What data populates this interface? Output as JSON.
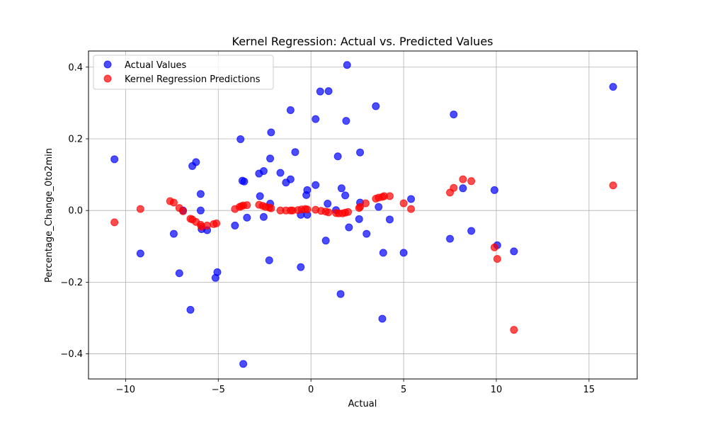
{
  "chart_data": {
    "type": "scatter",
    "title": "Kernel Regression: Actual vs. Predicted Values",
    "xlabel": "Actual",
    "ylabel": "Percentage_Change_0to2min",
    "xlim": [
      -12,
      17.6
    ],
    "ylim": [
      -0.47,
      0.445
    ],
    "x_ticks": [
      -10,
      -5,
      0,
      5,
      10,
      15
    ],
    "x_tick_labels": [
      "−10",
      "−5",
      "0",
      "5",
      "10",
      "15"
    ],
    "y_ticks": [
      -0.4,
      -0.2,
      0.0,
      0.2,
      0.4
    ],
    "y_tick_labels": [
      "−0.4",
      "−0.2",
      "0.0",
      "0.2",
      "0.4"
    ],
    "grid": true,
    "legend_position": "top-left",
    "series": [
      {
        "name": "Actual Values",
        "color": "#0000ff",
        "points": [
          [
            -10.6,
            0.143
          ],
          [
            -9.2,
            -0.12
          ],
          [
            -7.4,
            -0.065
          ],
          [
            -7.1,
            -0.175
          ],
          [
            -6.9,
            0.0
          ],
          [
            -6.5,
            -0.277
          ],
          [
            -6.4,
            0.124
          ],
          [
            -6.2,
            0.135
          ],
          [
            -5.95,
            0.046
          ],
          [
            -5.95,
            0.0
          ],
          [
            -5.9,
            -0.052
          ],
          [
            -5.6,
            -0.055
          ],
          [
            -5.15,
            -0.188
          ],
          [
            -5.05,
            -0.172
          ],
          [
            -4.1,
            -0.042
          ],
          [
            -3.8,
            0.199
          ],
          [
            -3.7,
            0.083
          ],
          [
            -3.65,
            -0.428
          ],
          [
            -3.6,
            0.081
          ],
          [
            -3.45,
            -0.02
          ],
          [
            -2.8,
            0.103
          ],
          [
            -2.75,
            0.04
          ],
          [
            -2.55,
            0.11
          ],
          [
            -2.55,
            -0.018
          ],
          [
            -2.25,
            -0.139
          ],
          [
            -2.2,
            0.019
          ],
          [
            -2.2,
            0.145
          ],
          [
            -2.15,
            0.218
          ],
          [
            -1.65,
            0.105
          ],
          [
            -1.35,
            0.078
          ],
          [
            -1.1,
            0.087
          ],
          [
            -1.1,
            0.28
          ],
          [
            -0.85,
            0.163
          ],
          [
            -0.55,
            -0.012
          ],
          [
            -0.55,
            -0.158
          ],
          [
            -0.25,
            0.043
          ],
          [
            -0.2,
            0.057
          ],
          [
            -0.2,
            -0.012
          ],
          [
            0.25,
            0.071
          ],
          [
            0.25,
            0.255
          ],
          [
            0.5,
            0.332
          ],
          [
            0.8,
            -0.084
          ],
          [
            0.9,
            0.019
          ],
          [
            0.95,
            0.333
          ],
          [
            1.35,
            0.001
          ],
          [
            1.45,
            0.151
          ],
          [
            1.6,
            -0.233
          ],
          [
            1.65,
            0.062
          ],
          [
            1.85,
            0.042
          ],
          [
            1.9,
            0.25
          ],
          [
            1.95,
            0.406
          ],
          [
            2.05,
            -0.047
          ],
          [
            2.6,
            -0.024
          ],
          [
            2.65,
            0.162
          ],
          [
            2.65,
            0.022
          ],
          [
            3.0,
            -0.065
          ],
          [
            3.5,
            0.291
          ],
          [
            3.65,
            0.01
          ],
          [
            3.85,
            -0.302
          ],
          [
            3.9,
            -0.118
          ],
          [
            4.25,
            -0.025
          ],
          [
            5.0,
            -0.118
          ],
          [
            5.4,
            0.032
          ],
          [
            7.5,
            -0.079
          ],
          [
            7.7,
            0.268
          ],
          [
            8.2,
            0.062
          ],
          [
            8.65,
            -0.057
          ],
          [
            9.9,
            0.057
          ],
          [
            10.05,
            -0.097
          ],
          [
            10.95,
            -0.114
          ],
          [
            16.3,
            0.345
          ]
        ]
      },
      {
        "name": "Kernel Regression Predictions",
        "color": "#ff0000",
        "points": [
          [
            -10.6,
            -0.033
          ],
          [
            -9.2,
            0.004
          ],
          [
            -7.6,
            0.026
          ],
          [
            -7.4,
            0.022
          ],
          [
            -7.1,
            0.007
          ],
          [
            -6.9,
            -0.002
          ],
          [
            -6.5,
            -0.023
          ],
          [
            -6.4,
            -0.025
          ],
          [
            -6.2,
            -0.032
          ],
          [
            -5.95,
            -0.04
          ],
          [
            -5.9,
            -0.045
          ],
          [
            -5.6,
            -0.042
          ],
          [
            -5.25,
            -0.038
          ],
          [
            -5.1,
            -0.036
          ],
          [
            -4.1,
            0.004
          ],
          [
            -3.85,
            0.01
          ],
          [
            -3.75,
            0.012
          ],
          [
            -3.65,
            0.014
          ],
          [
            -3.45,
            0.015
          ],
          [
            -2.8,
            0.016
          ],
          [
            -2.6,
            0.013
          ],
          [
            -2.45,
            0.01
          ],
          [
            -2.25,
            0.008
          ],
          [
            -2.15,
            0.006
          ],
          [
            -1.65,
            0.0
          ],
          [
            -1.35,
            0.0
          ],
          [
            -1.1,
            0.0
          ],
          [
            -1.0,
            0.0
          ],
          [
            -0.7,
            0.001
          ],
          [
            -0.5,
            0.003
          ],
          [
            -0.3,
            0.004
          ],
          [
            -0.2,
            0.003
          ],
          [
            0.25,
            0.002
          ],
          [
            0.55,
            -0.001
          ],
          [
            0.8,
            -0.003
          ],
          [
            0.95,
            -0.005
          ],
          [
            1.35,
            -0.007
          ],
          [
            1.5,
            -0.008
          ],
          [
            1.7,
            -0.008
          ],
          [
            1.85,
            -0.006
          ],
          [
            2.0,
            -0.004
          ],
          [
            2.6,
            0.007
          ],
          [
            2.65,
            0.01
          ],
          [
            2.95,
            0.02
          ],
          [
            3.5,
            0.033
          ],
          [
            3.65,
            0.036
          ],
          [
            3.85,
            0.038
          ],
          [
            3.95,
            0.04
          ],
          [
            4.25,
            0.04
          ],
          [
            5.0,
            0.02
          ],
          [
            5.4,
            0.004
          ],
          [
            7.5,
            0.05
          ],
          [
            7.7,
            0.063
          ],
          [
            8.2,
            0.087
          ],
          [
            8.65,
            0.082
          ],
          [
            9.9,
            -0.103
          ],
          [
            10.05,
            -0.135
          ],
          [
            10.95,
            -0.333
          ],
          [
            16.3,
            0.07
          ]
        ]
      }
    ]
  }
}
